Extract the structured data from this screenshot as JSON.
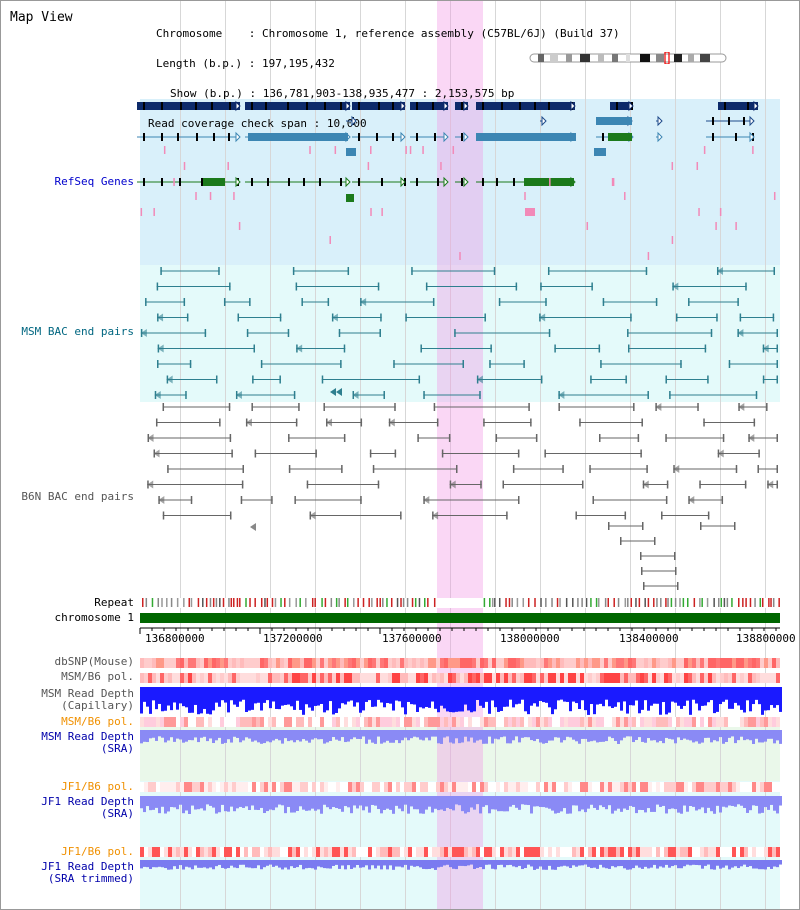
{
  "header": {
    "view_title": "Map View",
    "chromosome_label": "Chromosome",
    "chromosome_value": "Chromosome 1, reference assembly (C57BL/6J) (Build 37)",
    "length_label": "Length (b.p.)",
    "length_value": "197,195,432",
    "show_label": "Show (b.p.)",
    "show_value": "136,781,903-138,935,477 : 2,153,575 bp",
    "coverage_label": "Read coverage check span",
    "coverage_value": "10,000"
  },
  "tracks": {
    "refseq": "RefSeq Genes",
    "msm_bac": "MSM BAC end pairs",
    "b6n_bac": "B6N BAC end pairs",
    "repeat": "Repeat",
    "chromosome": "chromosome 1",
    "dbsnp": "dbSNP(Mouse)",
    "msm_b6_pol": "MSM/B6 pol.",
    "msm_depth_cap_1": "MSM Read Depth",
    "msm_depth_cap_2": "(Capillary)",
    "msm_b6_pol_2": "MSM/B6 pol.",
    "msm_depth_sra_1": "MSM Read Depth",
    "msm_depth_sra_2": "(SRA)",
    "jf1_b6_pol": "JF1/B6 pol.",
    "jf1_depth_sra_1": "JF1 Read Depth",
    "jf1_depth_sra_2": "(SRA)",
    "jf1_b6_pol_2": "JF1/B6 pol.",
    "jf1_depth_trim_1": "JF1 Read Depth",
    "jf1_depth_trim_2": "(SRA trimmed)"
  },
  "axis_ticks": [
    "136800000",
    "137200000",
    "137600000",
    "138000000",
    "138400000",
    "138800000"
  ],
  "colors": {
    "refseq_bg": "#d9f0fa",
    "bac_msm_bg": "#e4fafa",
    "highlight": "#f8d1f2",
    "refseq_label": "#0000cc",
    "msm_label": "#006680",
    "b6n_label": "#555555",
    "pol_label_orange": "#f09000",
    "depth_label": "#0000aa",
    "chromosome_bar": "#006600"
  }
}
